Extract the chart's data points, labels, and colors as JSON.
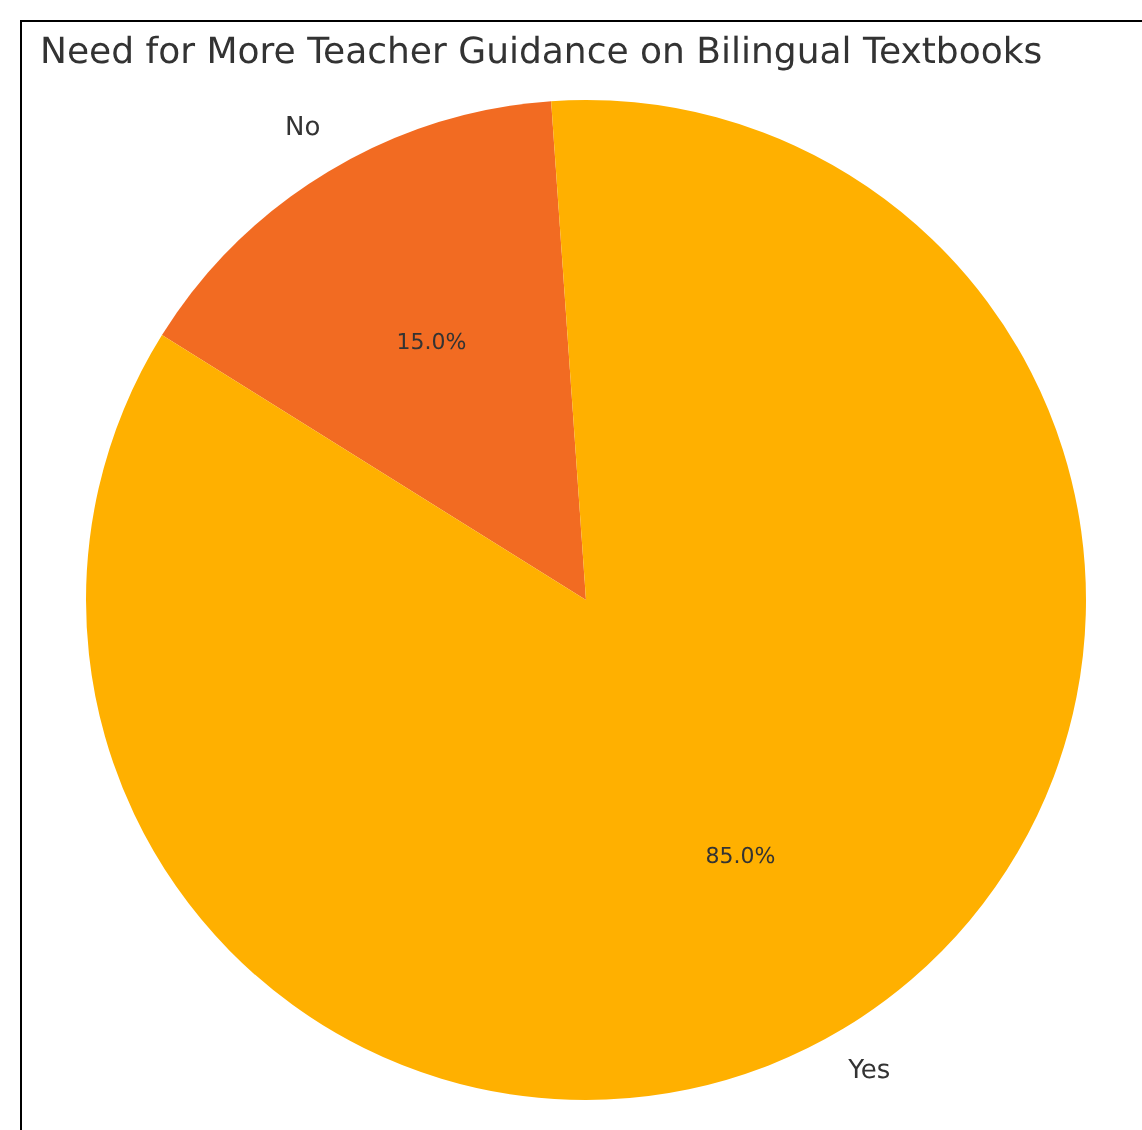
{
  "chart_data": {
    "type": "pie",
    "title": "Need for More Teacher Guidance on Bilingual Textbooks",
    "categories": [
      "No",
      "Yes"
    ],
    "values": [
      15.0,
      85.0
    ],
    "colors": [
      "#f26b22",
      "#ffb000"
    ],
    "value_labels": [
      "15.0%",
      "85.0%"
    ],
    "legend": false
  }
}
